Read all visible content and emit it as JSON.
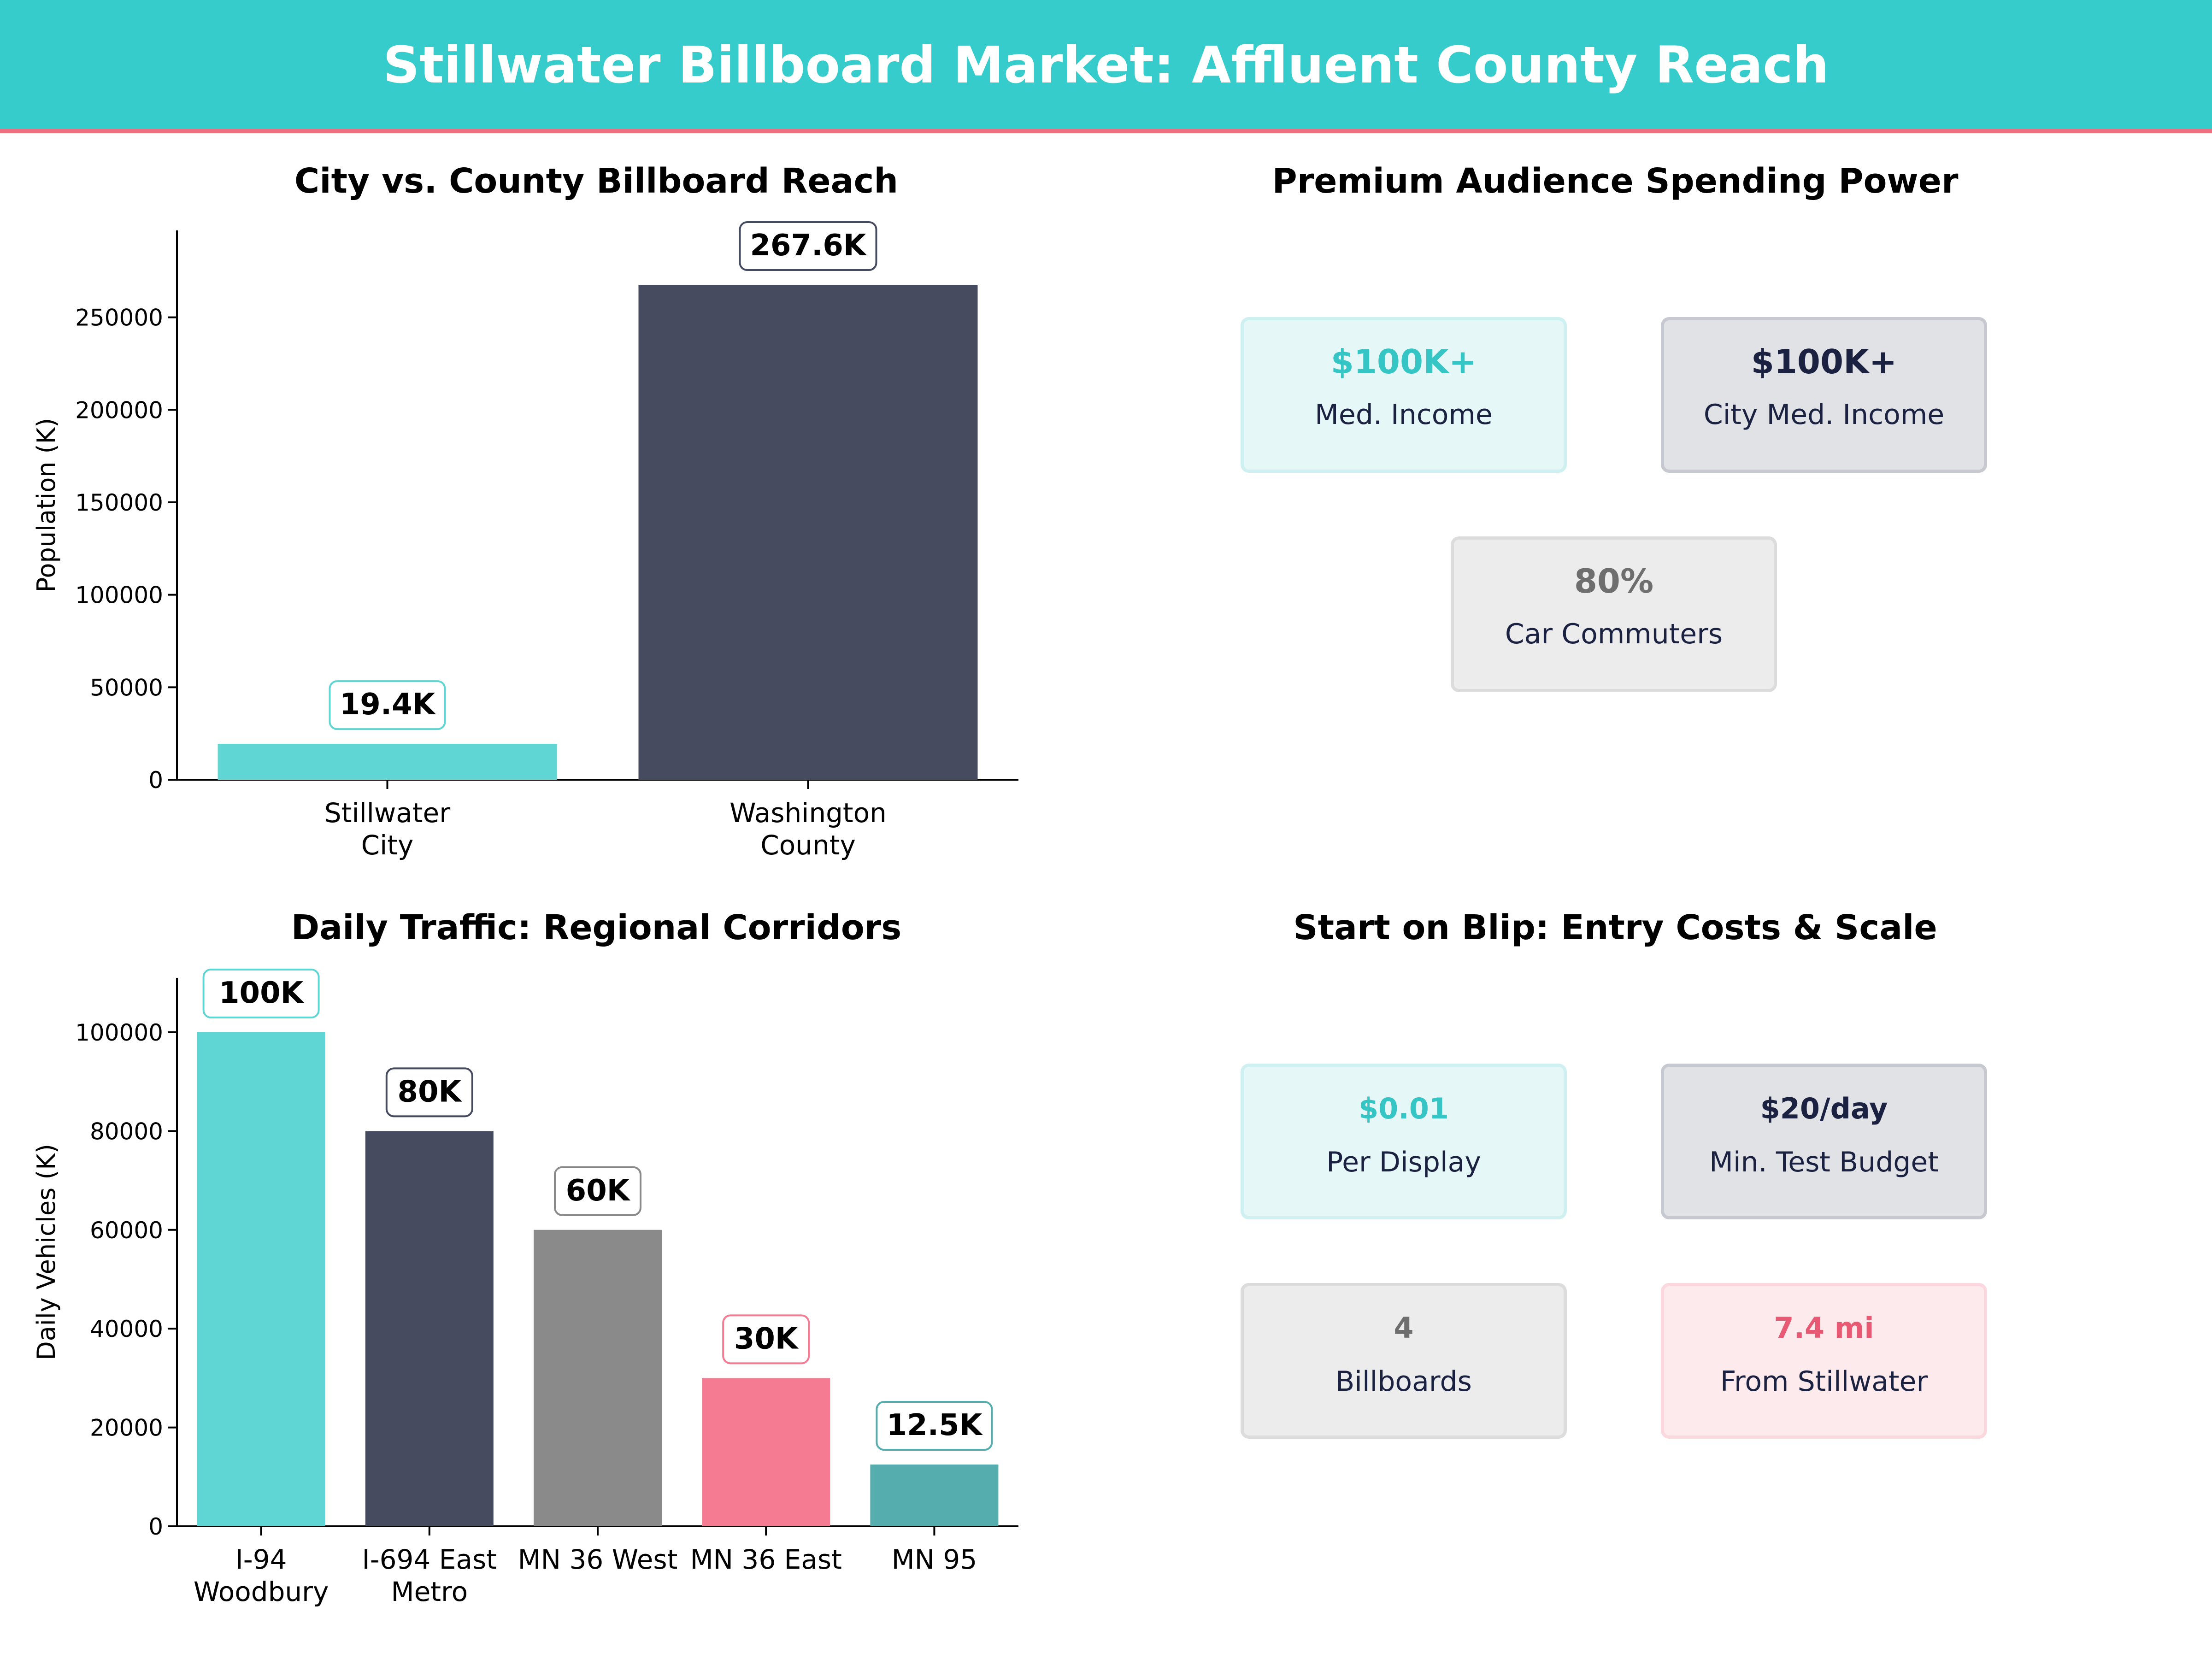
{
  "header": {
    "title": "Stillwater Billboard Market: Affluent County Reach"
  },
  "chart_data": [
    {
      "type": "bar",
      "title": "City vs. County Billboard Reach",
      "xlabel": "",
      "ylabel": "Population (K)",
      "categories": [
        "Stillwater\nCity",
        "Washington\nCounty"
      ],
      "values": [
        19400,
        267600
      ],
      "data_labels": [
        "19.4K",
        "267.6K"
      ],
      "colors": [
        "#5fd6d3",
        "#464b60"
      ],
      "ylim": [
        0,
        297000
      ],
      "yticks": [
        0,
        50000,
        100000,
        150000,
        200000,
        250000
      ],
      "grid": false,
      "legend": "none"
    },
    {
      "type": "bar",
      "title": "Daily Traffic: Regional Corridors",
      "xlabel": "",
      "ylabel": "Daily Vehicles (K)",
      "categories": [
        "I-94\nWoodbury",
        "I-694 East\nMetro",
        "MN 36 West",
        "MN 36 East",
        "MN 95"
      ],
      "values": [
        100000,
        80000,
        60000,
        30000,
        12500
      ],
      "data_labels": [
        "100K",
        "80K",
        "60K",
        "30K",
        "12.5K"
      ],
      "colors": [
        "#5fd6d3",
        "#464b60",
        "#8a8a8a",
        "#f47b91",
        "#55adad"
      ],
      "ylim": [
        0,
        111000
      ],
      "yticks": [
        0,
        20000,
        40000,
        60000,
        80000,
        100000
      ],
      "grid": false,
      "legend": "none"
    }
  ],
  "spending_panel": {
    "title": "Premium Audience Spending Power",
    "cards": [
      {
        "value": "$100K+",
        "label": "Med. Income",
        "accent": "#36c5c5"
      },
      {
        "value": "$100K+",
        "label": "City Med. Income",
        "accent": "#1b2140"
      },
      {
        "value": "80%",
        "label": "Car Commuters",
        "accent": "#6e6e6e"
      }
    ]
  },
  "entry_panel": {
    "title": "Start on Blip: Entry Costs & Scale",
    "cards": [
      {
        "value": "$0.01",
        "label": "Per Display",
        "accent": "#36c5c5"
      },
      {
        "value": "$20/day",
        "label": "Min. Test Budget",
        "accent": "#1b2140"
      },
      {
        "value": "4",
        "label": "Billboards",
        "accent": "#6e6e6e"
      },
      {
        "value": "7.4 mi",
        "label": "From Stillwater",
        "accent": "#e85a73"
      }
    ]
  }
}
